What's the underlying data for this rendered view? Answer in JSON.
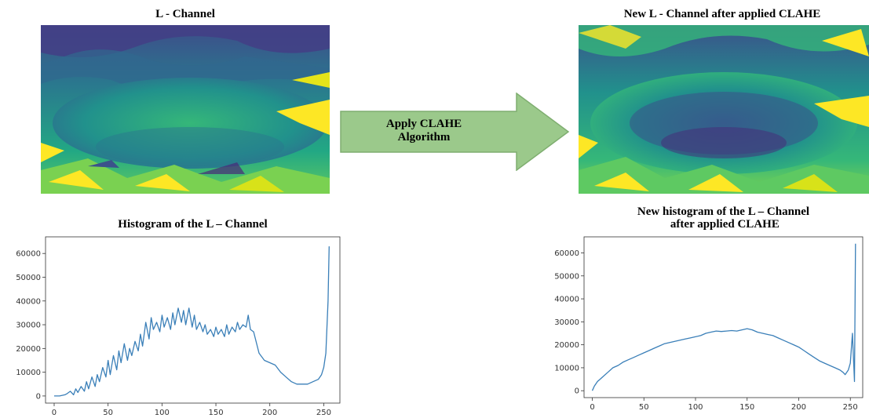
{
  "left_image": {
    "title": "L - Channel"
  },
  "right_image": {
    "title": "New L - Channel after applied CLAHE"
  },
  "arrow": {
    "label_line1": "Apply CLAHE",
    "label_line2": "Algorithm",
    "fill": "#9bc98b",
    "stroke": "#7fae70"
  },
  "chart_data": [
    {
      "type": "line",
      "title": "Histogram of the L – Channel",
      "xlabel": "",
      "ylabel": "",
      "xlim": [
        -8,
        265
      ],
      "ylim": [
        -3000,
        67000
      ],
      "xticks": [
        0,
        50,
        100,
        150,
        200,
        250
      ],
      "yticks": [
        0,
        10000,
        20000,
        30000,
        40000,
        50000,
        60000
      ],
      "color": "#3a7fb8",
      "x": [
        0,
        5,
        10,
        12,
        15,
        18,
        20,
        22,
        25,
        28,
        30,
        32,
        35,
        38,
        40,
        42,
        45,
        48,
        50,
        52,
        55,
        58,
        60,
        62,
        65,
        68,
        70,
        72,
        75,
        78,
        80,
        82,
        85,
        88,
        90,
        92,
        95,
        98,
        100,
        102,
        105,
        108,
        110,
        112,
        115,
        118,
        120,
        122,
        125,
        128,
        130,
        132,
        135,
        138,
        140,
        142,
        145,
        148,
        150,
        152,
        155,
        158,
        160,
        162,
        165,
        168,
        170,
        172,
        175,
        178,
        180,
        182,
        185,
        190,
        195,
        200,
        205,
        210,
        215,
        220,
        225,
        230,
        235,
        240,
        245,
        248,
        250,
        252,
        254,
        255
      ],
      "y": [
        0,
        0,
        500,
        1000,
        2000,
        500,
        3000,
        1500,
        4000,
        2000,
        6000,
        3000,
        8000,
        4000,
        9000,
        6000,
        12000,
        8000,
        15000,
        9000,
        17000,
        11000,
        19000,
        14000,
        22000,
        15000,
        20000,
        17000,
        23000,
        19000,
        26000,
        21000,
        31000,
        24000,
        33000,
        28000,
        31000,
        27000,
        34000,
        29000,
        33000,
        28000,
        35000,
        30000,
        37000,
        31000,
        36000,
        30000,
        37000,
        29000,
        34000,
        28000,
        31000,
        27000,
        30000,
        26000,
        28000,
        25000,
        29000,
        26000,
        28000,
        25000,
        30000,
        26000,
        29000,
        27000,
        31000,
        28000,
        30000,
        29000,
        34000,
        28000,
        27000,
        18000,
        15000,
        14000,
        13000,
        10000,
        8000,
        6000,
        5000,
        5000,
        5000,
        6000,
        7000,
        9000,
        12000,
        18000,
        40000,
        63000
      ]
    },
    {
      "type": "line",
      "title": "New histogram of the L – Channel\n after applied CLAHE",
      "xlabel": "",
      "ylabel": "",
      "xlim": [
        -8,
        262
      ],
      "ylim": [
        -3000,
        67000
      ],
      "xticks": [
        0,
        50,
        100,
        150,
        200,
        250
      ],
      "yticks": [
        0,
        10000,
        20000,
        30000,
        40000,
        50000,
        60000
      ],
      "color": "#3a7fb8",
      "x": [
        0,
        2,
        5,
        10,
        15,
        20,
        25,
        30,
        35,
        40,
        45,
        50,
        55,
        60,
        65,
        70,
        75,
        80,
        85,
        90,
        95,
        100,
        105,
        110,
        115,
        120,
        125,
        130,
        135,
        140,
        145,
        150,
        155,
        160,
        165,
        170,
        175,
        180,
        185,
        190,
        195,
        200,
        205,
        210,
        215,
        220,
        225,
        230,
        235,
        240,
        243,
        245,
        248,
        250,
        252,
        254,
        255
      ],
      "y": [
        0,
        2000,
        4000,
        6000,
        8000,
        10000,
        11000,
        12500,
        13500,
        14500,
        15500,
        16500,
        17500,
        18500,
        19500,
        20500,
        21000,
        21500,
        22000,
        22500,
        23000,
        23500,
        24000,
        25000,
        25500,
        26000,
        25800,
        26000,
        26200,
        26000,
        26500,
        27000,
        26500,
        25500,
        25000,
        24500,
        24000,
        23000,
        22000,
        21000,
        20000,
        19000,
        17500,
        16000,
        14500,
        13000,
        12000,
        11000,
        10000,
        9000,
        8000,
        7000,
        9000,
        12000,
        25000,
        4000,
        64000
      ]
    }
  ]
}
